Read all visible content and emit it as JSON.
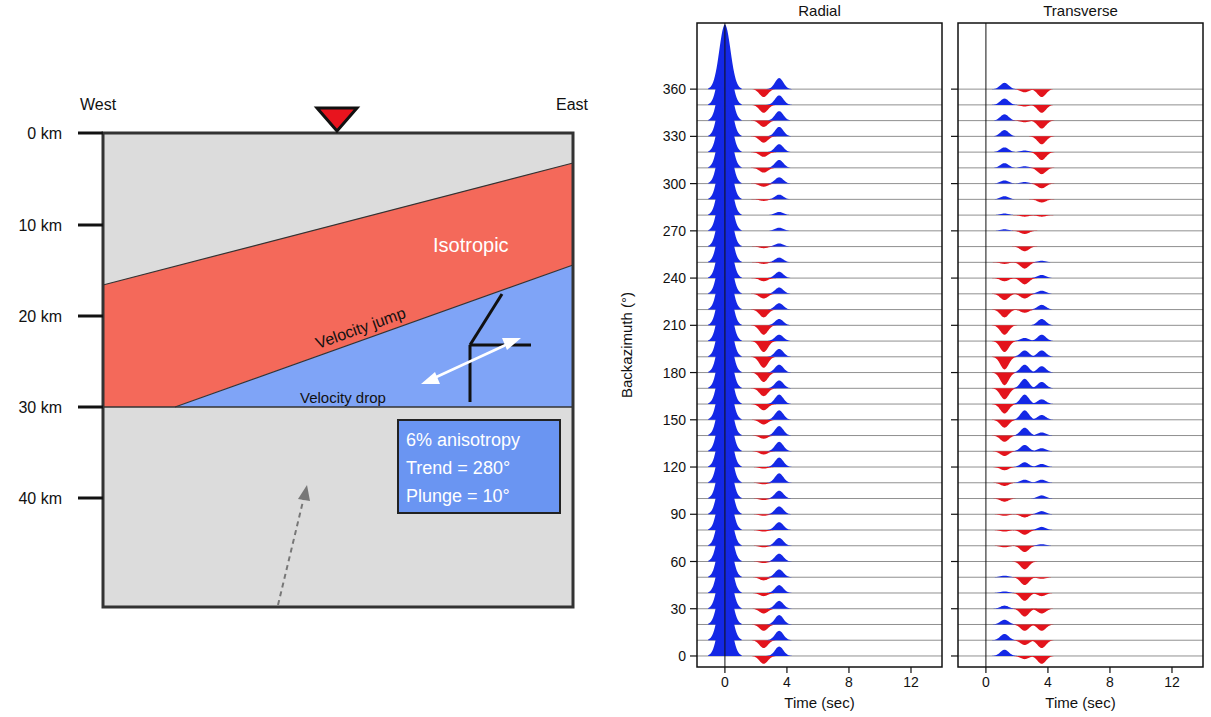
{
  "diagram": {
    "west": "West",
    "east": "East",
    "depth_labels": [
      "0 km",
      "10 km",
      "20 km",
      "30 km",
      "40 km"
    ],
    "layer_label": "Isotropic",
    "upper_boundary_label": "Velocity jump",
    "lower_boundary_label": "Velocity drop",
    "info_box": [
      "6% anisotropy",
      "Trend = 280°",
      "Plunge = 10°"
    ]
  },
  "chart_data": [
    {
      "type": "wiggle",
      "title": "Radial",
      "xlabel": "Time (sec)",
      "ylabel": "Backazimuth (°)",
      "xlim": [
        -1.8,
        14
      ],
      "xticks": [
        0,
        4,
        8,
        12
      ],
      "ylim": [
        -7,
        402
      ],
      "yticks": [
        0,
        30,
        60,
        90,
        120,
        150,
        180,
        210,
        240,
        270,
        300,
        330,
        360
      ],
      "tick_labels": true,
      "backazimuth": [
        0,
        10,
        20,
        30,
        40,
        50,
        60,
        70,
        80,
        90,
        100,
        110,
        120,
        130,
        140,
        150,
        160,
        170,
        180,
        190,
        200,
        210,
        220,
        230,
        240,
        250,
        260,
        270,
        280,
        290,
        300,
        310,
        320,
        330,
        340,
        350,
        360
      ],
      "pulses": [
        {
          "time": 0,
          "amplitude": [
            41,
            41,
            41,
            41,
            41,
            41,
            41,
            41,
            41,
            41,
            41,
            41,
            41,
            41,
            41,
            41,
            41,
            41,
            41,
            41,
            41,
            41,
            41,
            41,
            41,
            41,
            41,
            41,
            41,
            41,
            41,
            41,
            41,
            41,
            41,
            41,
            41
          ]
        },
        {
          "time": 2.5,
          "amplitude": [
            -5,
            -5,
            -4,
            -3,
            -2,
            -2,
            -1,
            -1,
            -1,
            -1,
            -1,
            -1,
            -1,
            -2,
            -2,
            -3,
            -4,
            -5,
            -6,
            -7,
            -7,
            -6,
            -5,
            -3,
            -2,
            -1,
            -1,
            0,
            0,
            -1,
            -2,
            -3,
            -3,
            -4,
            -4,
            -5,
            -5
          ]
        },
        {
          "time": 3.5,
          "amplitude": [
            6,
            6,
            6,
            5,
            5,
            5,
            5,
            5,
            5,
            5,
            5,
            6,
            6,
            6,
            6,
            6,
            6,
            5,
            5,
            5,
            4,
            4,
            4,
            4,
            4,
            3,
            2,
            2,
            2,
            3,
            4,
            5,
            5,
            6,
            6,
            6,
            7
          ]
        }
      ]
    },
    {
      "type": "wiggle",
      "title": "Transverse",
      "xlabel": "Time (sec)",
      "xlim": [
        -1.8,
        14
      ],
      "xticks": [
        0,
        4,
        8,
        12
      ],
      "ylim": [
        -7,
        402
      ],
      "yticks": [
        0,
        30,
        60,
        90,
        120,
        150,
        180,
        210,
        240,
        270,
        300,
        330,
        360
      ],
      "tick_labels": "x",
      "backazimuth": [
        0,
        10,
        20,
        30,
        40,
        50,
        60,
        70,
        80,
        90,
        100,
        110,
        120,
        130,
        140,
        150,
        160,
        170,
        180,
        190,
        200,
        210,
        220,
        230,
        240,
        250,
        260,
        270,
        280,
        290,
        300,
        310,
        320,
        330,
        340,
        350,
        360
      ],
      "pulses": [
        {
          "time": 1.2,
          "amplitude": [
            4,
            4,
            3,
            2,
            1,
            1,
            0,
            -1,
            -1,
            -1,
            -2,
            -2,
            -2,
            -3,
            -4,
            -5,
            -6,
            -7,
            -8,
            -8,
            -7,
            -6,
            -5,
            -4,
            -2,
            -1,
            0,
            1,
            1,
            2,
            2,
            3,
            3,
            4,
            4,
            4,
            4
          ]
        },
        {
          "time": 2.5,
          "amplitude": [
            -2,
            -3,
            -4,
            -5,
            -5,
            -5,
            -5,
            -4,
            -3,
            -2,
            0,
            2,
            3,
            4,
            5,
            6,
            6,
            6,
            5,
            4,
            2,
            0,
            -2,
            -3,
            -4,
            -4,
            -3,
            -2,
            -1,
            0,
            1,
            1,
            1,
            0,
            -1,
            -1,
            -2
          ]
        },
        {
          "time": 3.6,
          "amplitude": [
            -5,
            -5,
            -4,
            -3,
            -2,
            -1,
            0,
            1,
            2,
            2,
            2,
            2,
            2,
            2,
            2,
            3,
            3,
            4,
            4,
            4,
            4,
            4,
            3,
            2,
            2,
            1,
            0,
            0,
            -1,
            -2,
            -3,
            -4,
            -5,
            -5,
            -5,
            -5,
            -5
          ]
        }
      ]
    }
  ]
}
